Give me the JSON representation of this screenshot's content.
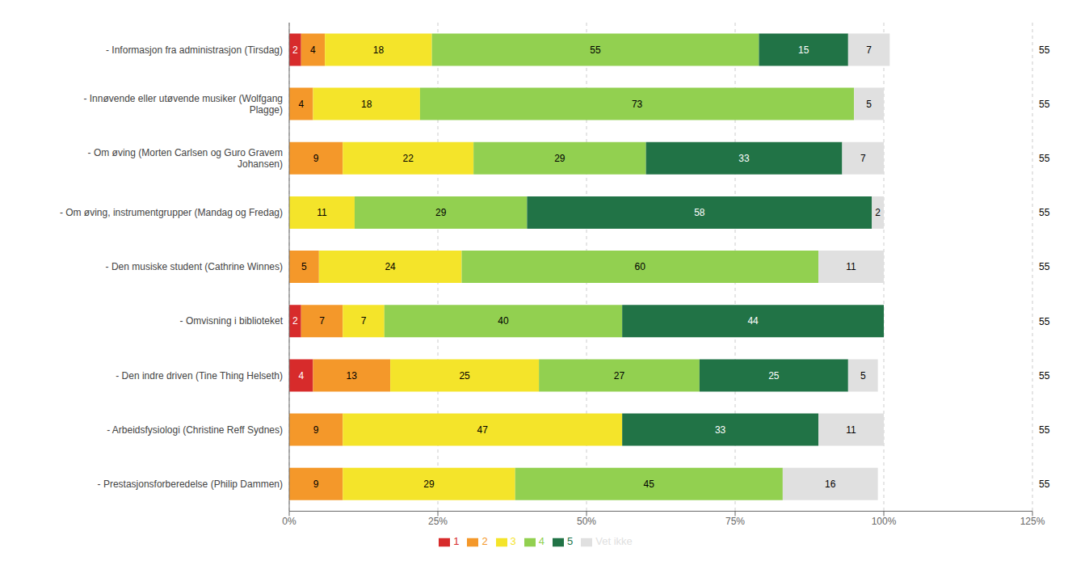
{
  "chart_data": {
    "type": "bar",
    "orientation": "horizontal",
    "stacked": true,
    "data_labels": true,
    "grid": true,
    "categories": [
      "- Informasjon fra administrasjon (Tirsdag)",
      "- Innøvende eller utøvende musiker (Wolfgang\nPlagge)",
      "- Om øving (Morten Carlsen og Guro Gravem\nJohansen)",
      "- Om øving, instrumentgrupper (Mandag og Fredag)",
      "- Den musiske student (Cathrine Winnes)",
      "- Omvisning i biblioteket",
      "- Den indre driven (Tine Thing Helseth)",
      "- Arbeidsfysiologi (Christine Reff Sydnes)",
      "- Prestasjonsforberedelse (Philip Dammen)"
    ],
    "series": [
      {
        "name": "1",
        "color": "#d72b2b",
        "values": [
          2,
          0,
          0,
          0,
          0,
          2,
          4,
          0,
          0
        ]
      },
      {
        "name": "2",
        "color": "#f4982a",
        "values": [
          4,
          4,
          9,
          0,
          5,
          7,
          13,
          9,
          9
        ]
      },
      {
        "name": "3",
        "color": "#f4e42a",
        "values": [
          18,
          18,
          22,
          11,
          24,
          7,
          25,
          47,
          29
        ]
      },
      {
        "name": "4",
        "color": "#92d050",
        "values": [
          55,
          73,
          29,
          29,
          60,
          40,
          27,
          0,
          45
        ]
      },
      {
        "name": "5",
        "color": "#217346",
        "values": [
          15,
          0,
          33,
          58,
          0,
          44,
          25,
          33,
          0
        ]
      },
      {
        "name": "Vet ikke",
        "color": "#e0e0e0",
        "values": [
          7,
          5,
          7,
          2,
          11,
          0,
          5,
          11,
          16
        ]
      }
    ],
    "n_values": [
      55,
      55,
      55,
      55,
      55,
      55,
      55,
      55,
      55
    ],
    "xlim": [
      0,
      125
    ],
    "xticks": [
      {
        "value": 0,
        "label": "0%"
      },
      {
        "value": 25,
        "label": "25%"
      },
      {
        "value": 50,
        "label": "50%"
      },
      {
        "value": 75,
        "label": "75%"
      },
      {
        "value": 100,
        "label": "100%"
      },
      {
        "value": 125,
        "label": "125%"
      }
    ]
  }
}
